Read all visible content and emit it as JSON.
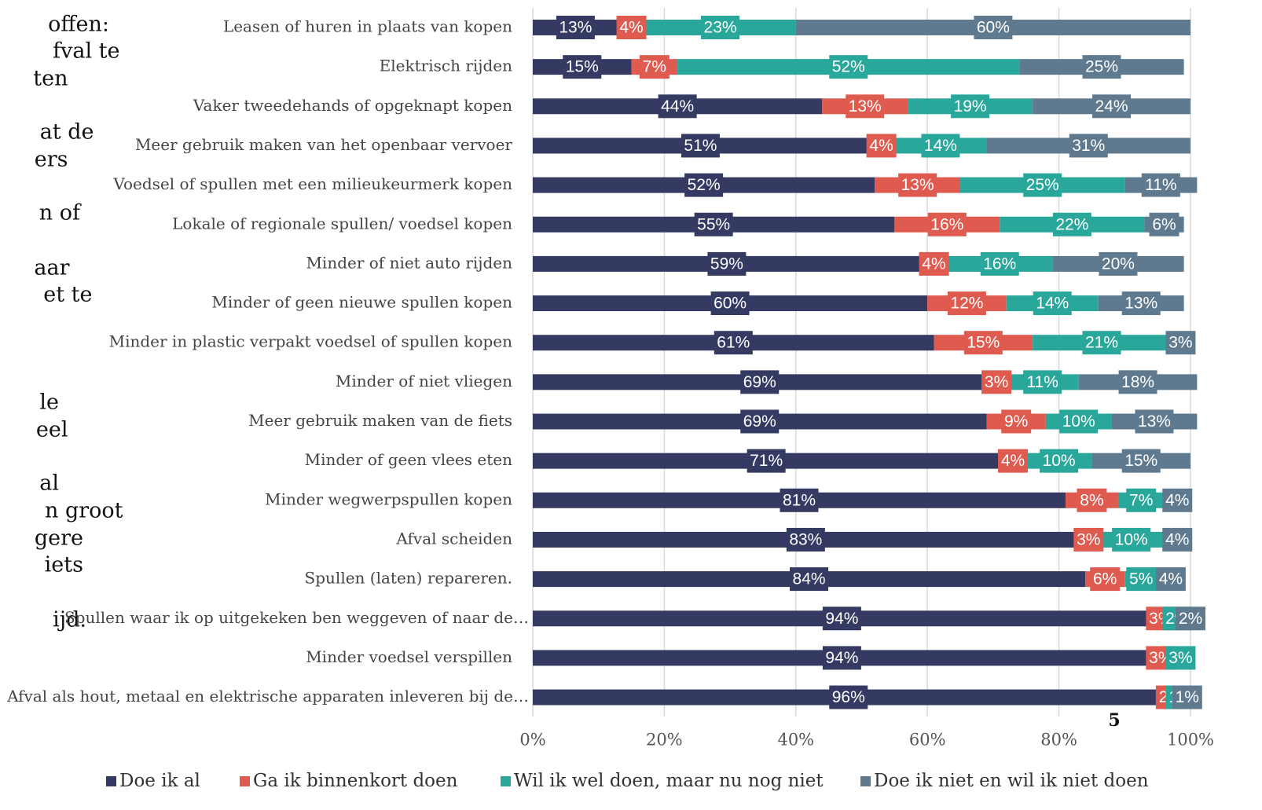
{
  "side_text": [
    "offen:",
    "fval te",
    "ten",
    "at de",
    "ers",
    "n of",
    "aar",
    "et te",
    "le",
    "eel",
    "al",
    "n groot",
    "gere",
    "iets",
    "ijd."
  ],
  "page_number": "5",
  "chart_data": {
    "type": "stacked_barh",
    "categories": [
      "Leasen of huren in plaats van kopen",
      "Elektrisch rijden",
      "Vaker tweedehands of opgeknapt kopen",
      "Meer gebruik maken van het openbaar vervoer",
      "Voedsel of spullen met een milieukeurmerk kopen",
      "Lokale of regionale spullen/ voedsel kopen",
      "Minder of niet auto rijden",
      "Minder of geen nieuwe spullen kopen",
      "Minder in plastic verpakt voedsel of spullen kopen",
      "Minder of niet vliegen",
      "Meer gebruik maken van de fiets",
      "Minder of geen vlees eten",
      "Minder wegwerpspullen kopen",
      "Afval scheiden",
      "Spullen (laten) repareren.",
      "Spullen waar ik op uitgekeken ben weggeven of naar de…",
      "Minder voedsel verspillen",
      "Afval als hout, metaal en elektrische apparaten inleveren bij de…"
    ],
    "series": [
      {
        "name": "Doe ik al",
        "color": "#353a63",
        "values": [
          13,
          15,
          44,
          51,
          52,
          55,
          59,
          60,
          61,
          69,
          69,
          71,
          81,
          83,
          84,
          94,
          94,
          96
        ],
        "value_labels": [
          "13%",
          "15%",
          "44%",
          "51%",
          "52%",
          "55%",
          "59%",
          "60%",
          "61%",
          "69%",
          "69%",
          "71%",
          "81%",
          "83%",
          "84%",
          "94%",
          "94%",
          "96%"
        ]
      },
      {
        "name": "Ga ik binnenkort doen",
        "color": "#e05b4f",
        "values": [
          4,
          7,
          13,
          4,
          13,
          16,
          4,
          12,
          15,
          3,
          9,
          4,
          8,
          3,
          6,
          3,
          3,
          2
        ],
        "value_labels": [
          "4%",
          "7%",
          "13%",
          "4%",
          "13%",
          "16%",
          "4%",
          "12%",
          "15%",
          "3%",
          "9%",
          "4%",
          "8%",
          "3%",
          "6%",
          "3%",
          "3%",
          "2%"
        ]
      },
      {
        "name": "Wil ik wel doen, maar nu nog niet",
        "color": "#2aa79b",
        "values": [
          23,
          52,
          19,
          14,
          25,
          22,
          16,
          14,
          21,
          11,
          10,
          10,
          7,
          10,
          5,
          2,
          3,
          1
        ],
        "value_labels": [
          "23%",
          "52%",
          "19%",
          "14%",
          "25%",
          "22%",
          "16%",
          "14%",
          "21%",
          "11%",
          "10%",
          "10%",
          "7%",
          "10%",
          "5%",
          "2%",
          "3%",
          "1%"
        ]
      },
      {
        "name": "Doe ik niet en wil ik niet doen",
        "color": "#5f7a8f",
        "values": [
          60,
          25,
          24,
          31,
          11,
          6,
          20,
          13,
          3,
          18,
          13,
          15,
          4,
          4,
          4,
          2,
          null,
          1
        ],
        "value_labels": [
          "60%",
          "25%",
          "24%",
          "31%",
          "11%",
          "6%",
          "20%",
          "13%",
          "3%",
          "18%",
          "13%",
          "15%",
          "4%",
          "4%",
          "4%",
          "2%",
          null,
          "1%"
        ]
      }
    ],
    "xlim": [
      0,
      100
    ],
    "xticks": [
      {
        "value": 0,
        "label": "0%"
      },
      {
        "value": 20,
        "label": "20%"
      },
      {
        "value": 40,
        "label": "40%"
      },
      {
        "value": 60,
        "label": "60%"
      },
      {
        "value": 80,
        "label": "80%"
      },
      {
        "value": 100,
        "label": "100%"
      }
    ],
    "grid": true
  }
}
